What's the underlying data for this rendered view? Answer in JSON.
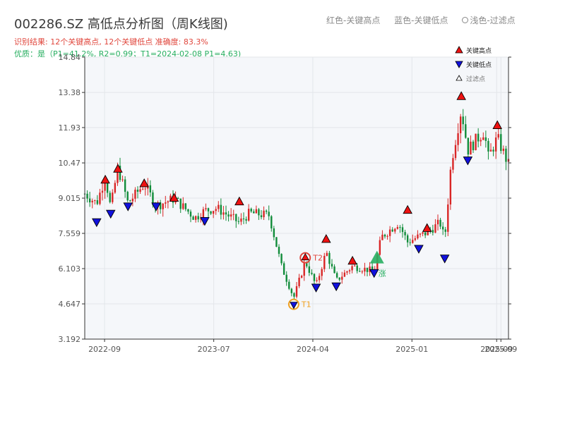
{
  "header": {
    "title": "002286.SZ 高低点分析图（周K线图)",
    "result_line": "识别结果: 12个关键高点, 12个关键低点   准确度: 83.3%",
    "quality_line": "优质：是（P1=41.2%, R2=0.99；T1=2024-02-08 P1=4.63)"
  },
  "top_legend": {
    "red": "红色-关键高点",
    "blue": "蓝色-关键低点",
    "light": "浅色-过滤点"
  },
  "colors": {
    "up": "#d92626",
    "down": "#118c3a",
    "high": "#ee1111",
    "low": "#1111dd",
    "annotation": "#f0a020",
    "t2": "#e0463c",
    "signal": "#27ae60"
  },
  "chart_data": {
    "type": "candlestick",
    "title": "002286.SZ 高低点分析图（周K线图)",
    "x_axis": {
      "type": "date",
      "range": [
        "2022-07-08",
        "2025-09-26"
      ],
      "ticks": [
        "2022-09",
        "2023-07",
        "2024-04",
        "2025-01",
        "2025-09",
        "2025-09"
      ]
    },
    "y_axis": {
      "range": [
        3.192,
        14.84
      ],
      "ticks": [
        "3.192",
        "4.647",
        "6.103",
        "7.559",
        "9.015",
        "10.47",
        "11.93",
        "13.38",
        "14.84"
      ]
    },
    "grid": true,
    "legend_position": "top-right",
    "legend": {
      "high": "关键高点",
      "low": "关键低点",
      "filtered": "过滤点"
    },
    "trend_anchors": [
      [
        "2022-07-08",
        9.2
      ],
      [
        "2022-08-10",
        8.8
      ],
      [
        "2022-09-03",
        9.9
      ],
      [
        "2022-09-18",
        8.6
      ],
      [
        "2022-10-08",
        10.3
      ],
      [
        "2022-11-05",
        8.8
      ],
      [
        "2022-12-20",
        9.6
      ],
      [
        "2023-01-22",
        8.7
      ],
      [
        "2023-03-13",
        9.0
      ],
      [
        "2023-05-10",
        8.2
      ],
      [
        "2023-06-06",
        8.5
      ],
      [
        "2023-07-10",
        8.6
      ],
      [
        "2023-09-10",
        8.0
      ],
      [
        "2023-10-08",
        8.4
      ],
      [
        "2023-12-02",
        8.3
      ],
      [
        "2024-01-05",
        6.2
      ],
      [
        "2024-02-08",
        4.9
      ],
      [
        "2024-03-11",
        6.4
      ],
      [
        "2024-04-10",
        5.4
      ],
      [
        "2024-05-08",
        6.8
      ],
      [
        "2024-06-05",
        5.6
      ],
      [
        "2024-07-20",
        6.2
      ],
      [
        "2024-09-18",
        6.0
      ],
      [
        "2024-10-08",
        7.4
      ],
      [
        "2024-11-24",
        8.0
      ],
      [
        "2024-12-20",
        7.2
      ],
      [
        "2025-02-12",
        7.6
      ],
      [
        "2025-03-20",
        8.0
      ],
      [
        "2025-04-02",
        7.3
      ],
      [
        "2025-04-20",
        10.5
      ],
      [
        "2025-05-18",
        12.7
      ],
      [
        "2025-06-05",
        11.0
      ],
      [
        "2025-07-20",
        11.8
      ],
      [
        "2025-08-01",
        10.7
      ],
      [
        "2025-08-26",
        11.5
      ],
      [
        "2025-09-26",
        10.4
      ]
    ],
    "key_highs": [
      [
        "2022-09-03",
        9.75
      ],
      [
        "2022-10-08",
        10.2
      ],
      [
        "2022-12-20",
        9.6
      ],
      [
        "2023-03-13",
        9.0
      ],
      [
        "2023-09-10",
        8.85
      ],
      [
        "2024-05-08",
        7.3
      ],
      [
        "2024-07-20",
        6.4
      ],
      [
        "2024-12-20",
        8.5
      ],
      [
        "2025-02-12",
        7.75
      ],
      [
        "2025-05-18",
        13.2
      ],
      [
        "2025-08-26",
        12.0
      ]
    ],
    "key_lows": [
      [
        "2022-08-10",
        8.05
      ],
      [
        "2022-09-18",
        8.4
      ],
      [
        "2022-11-05",
        8.7
      ],
      [
        "2023-01-22",
        8.7
      ],
      [
        "2023-06-06",
        8.1
      ],
      [
        "2024-04-10",
        5.35
      ],
      [
        "2024-06-05",
        5.4
      ],
      [
        "2024-09-18",
        5.95
      ],
      [
        "2025-01-20",
        6.95
      ],
      [
        "2025-04-02",
        6.55
      ],
      [
        "2025-06-05",
        10.6
      ]
    ],
    "t1": {
      "label": "T1",
      "date": "2024-02-08",
      "value": 4.63
    },
    "t2": {
      "label": "T2",
      "date": "2024-03-11",
      "value": 6.55
    },
    "buy_signal": {
      "date": "2024-09-26",
      "value": 6.55,
      "label": "涨"
    }
  }
}
